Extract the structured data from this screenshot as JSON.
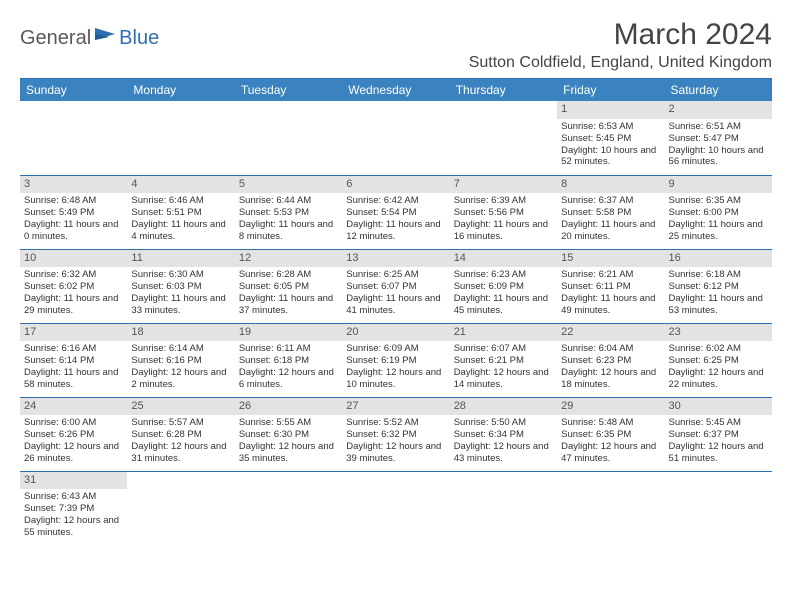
{
  "logo": {
    "part1": "General",
    "part2": "Blue"
  },
  "title": "March 2024",
  "location": "Sutton Coldfield, England, United Kingdom",
  "colors": {
    "header_bg": "#3b83c0",
    "rule": "#2f6fb0",
    "daynum_bg": "#e3e3e3",
    "logo_gray": "#5a5a5a",
    "logo_blue": "#2f6fb0"
  },
  "day_headers": [
    "Sunday",
    "Monday",
    "Tuesday",
    "Wednesday",
    "Thursday",
    "Friday",
    "Saturday"
  ],
  "weeks": [
    [
      null,
      null,
      null,
      null,
      null,
      {
        "n": "1",
        "sr": "6:53 AM",
        "ss": "5:45 PM",
        "dl": "10 hours and 52 minutes."
      },
      {
        "n": "2",
        "sr": "6:51 AM",
        "ss": "5:47 PM",
        "dl": "10 hours and 56 minutes."
      }
    ],
    [
      {
        "n": "3",
        "sr": "6:48 AM",
        "ss": "5:49 PM",
        "dl": "11 hours and 0 minutes."
      },
      {
        "n": "4",
        "sr": "6:46 AM",
        "ss": "5:51 PM",
        "dl": "11 hours and 4 minutes."
      },
      {
        "n": "5",
        "sr": "6:44 AM",
        "ss": "5:53 PM",
        "dl": "11 hours and 8 minutes."
      },
      {
        "n": "6",
        "sr": "6:42 AM",
        "ss": "5:54 PM",
        "dl": "11 hours and 12 minutes."
      },
      {
        "n": "7",
        "sr": "6:39 AM",
        "ss": "5:56 PM",
        "dl": "11 hours and 16 minutes."
      },
      {
        "n": "8",
        "sr": "6:37 AM",
        "ss": "5:58 PM",
        "dl": "11 hours and 20 minutes."
      },
      {
        "n": "9",
        "sr": "6:35 AM",
        "ss": "6:00 PM",
        "dl": "11 hours and 25 minutes."
      }
    ],
    [
      {
        "n": "10",
        "sr": "6:32 AM",
        "ss": "6:02 PM",
        "dl": "11 hours and 29 minutes."
      },
      {
        "n": "11",
        "sr": "6:30 AM",
        "ss": "6:03 PM",
        "dl": "11 hours and 33 minutes."
      },
      {
        "n": "12",
        "sr": "6:28 AM",
        "ss": "6:05 PM",
        "dl": "11 hours and 37 minutes."
      },
      {
        "n": "13",
        "sr": "6:25 AM",
        "ss": "6:07 PM",
        "dl": "11 hours and 41 minutes."
      },
      {
        "n": "14",
        "sr": "6:23 AM",
        "ss": "6:09 PM",
        "dl": "11 hours and 45 minutes."
      },
      {
        "n": "15",
        "sr": "6:21 AM",
        "ss": "6:11 PM",
        "dl": "11 hours and 49 minutes."
      },
      {
        "n": "16",
        "sr": "6:18 AM",
        "ss": "6:12 PM",
        "dl": "11 hours and 53 minutes."
      }
    ],
    [
      {
        "n": "17",
        "sr": "6:16 AM",
        "ss": "6:14 PM",
        "dl": "11 hours and 58 minutes."
      },
      {
        "n": "18",
        "sr": "6:14 AM",
        "ss": "6:16 PM",
        "dl": "12 hours and 2 minutes."
      },
      {
        "n": "19",
        "sr": "6:11 AM",
        "ss": "6:18 PM",
        "dl": "12 hours and 6 minutes."
      },
      {
        "n": "20",
        "sr": "6:09 AM",
        "ss": "6:19 PM",
        "dl": "12 hours and 10 minutes."
      },
      {
        "n": "21",
        "sr": "6:07 AM",
        "ss": "6:21 PM",
        "dl": "12 hours and 14 minutes."
      },
      {
        "n": "22",
        "sr": "6:04 AM",
        "ss": "6:23 PM",
        "dl": "12 hours and 18 minutes."
      },
      {
        "n": "23",
        "sr": "6:02 AM",
        "ss": "6:25 PM",
        "dl": "12 hours and 22 minutes."
      }
    ],
    [
      {
        "n": "24",
        "sr": "6:00 AM",
        "ss": "6:26 PM",
        "dl": "12 hours and 26 minutes."
      },
      {
        "n": "25",
        "sr": "5:57 AM",
        "ss": "6:28 PM",
        "dl": "12 hours and 31 minutes."
      },
      {
        "n": "26",
        "sr": "5:55 AM",
        "ss": "6:30 PM",
        "dl": "12 hours and 35 minutes."
      },
      {
        "n": "27",
        "sr": "5:52 AM",
        "ss": "6:32 PM",
        "dl": "12 hours and 39 minutes."
      },
      {
        "n": "28",
        "sr": "5:50 AM",
        "ss": "6:34 PM",
        "dl": "12 hours and 43 minutes."
      },
      {
        "n": "29",
        "sr": "5:48 AM",
        "ss": "6:35 PM",
        "dl": "12 hours and 47 minutes."
      },
      {
        "n": "30",
        "sr": "5:45 AM",
        "ss": "6:37 PM",
        "dl": "12 hours and 51 minutes."
      }
    ],
    [
      {
        "n": "31",
        "sr": "6:43 AM",
        "ss": "7:39 PM",
        "dl": "12 hours and 55 minutes."
      },
      null,
      null,
      null,
      null,
      null,
      null
    ]
  ],
  "labels": {
    "sunrise": "Sunrise:",
    "sunset": "Sunset:",
    "daylight": "Daylight:"
  }
}
